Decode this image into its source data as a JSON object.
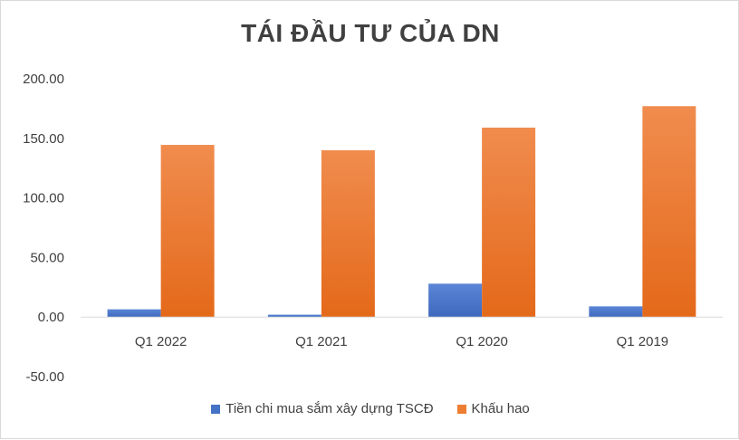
{
  "chart_data": {
    "type": "bar",
    "title": "TÁI ĐẦU TƯ CỦA DN",
    "categories": [
      "Q1 2022",
      "Q1 2021",
      "Q1 2020",
      "Q1 2019"
    ],
    "series": [
      {
        "name": "Tiền chi mua sắm xây dựng TSCĐ",
        "values": [
          6.5,
          2.0,
          28.0,
          9.0
        ],
        "color": "#4472c4"
      },
      {
        "name": "Khấu hao",
        "values": [
          144.5,
          140.0,
          159.0,
          177.0
        ],
        "color": "#ed7d31"
      }
    ],
    "ylim": [
      -50,
      200
    ],
    "yticks": [
      "200.00",
      "150.00",
      "100.00",
      "50.00",
      "0.00",
      "-50.00"
    ],
    "ytick_values": [
      200,
      150,
      100,
      50,
      0,
      -50
    ],
    "grid": false,
    "legend_position": "bottom"
  }
}
